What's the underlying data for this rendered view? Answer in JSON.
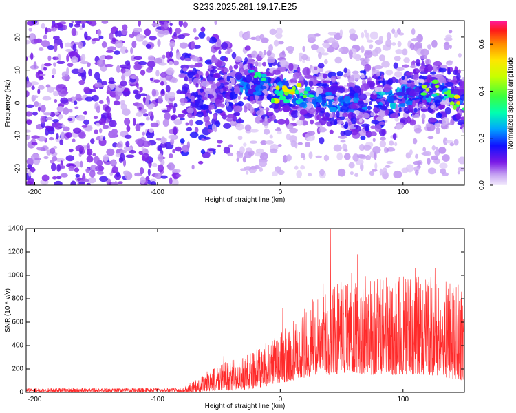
{
  "title": "S233.2025.281.19.17.E25",
  "colors": {
    "snr_line": "#ff2a2a",
    "axis": "#000000"
  },
  "chart_data": [
    {
      "type": "heatmap",
      "xlabel": "Height of straight line (km)",
      "ylabel": "Frequency (Hz)",
      "xlim": [
        -207,
        150
      ],
      "ylim": [
        -25,
        25
      ],
      "xticks": [
        -200,
        -100,
        0,
        100
      ],
      "yticks": [
        -20,
        -10,
        0,
        10,
        20
      ],
      "xtick_labels": [
        "-200",
        "-100",
        "0",
        "100"
      ],
      "ytick_labels": [
        "-20",
        "-10",
        "0",
        "10",
        "20"
      ],
      "colorbar": {
        "label": "Normalized spectral amplitude",
        "range": [
          0,
          0.7
        ],
        "ticks": [
          0.0,
          0.2,
          0.4,
          0.6
        ],
        "tick_labels": [
          "0.0",
          "0.2",
          "0.4",
          "0.6"
        ]
      },
      "ridge_center_hz": [
        {
          "x": -60,
          "f": 3
        },
        {
          "x": -30,
          "f": 5
        },
        {
          "x": 0,
          "f": 4
        },
        {
          "x": 30,
          "f": 1
        },
        {
          "x": 60,
          "f": 0
        },
        {
          "x": 90,
          "f": 1
        },
        {
          "x": 120,
          "f": 4
        },
        {
          "x": 148,
          "f": 1
        }
      ],
      "hotspots": [
        {
          "x": -20,
          "f": 8,
          "amp": 0.35
        },
        {
          "x": 0,
          "f": 3,
          "amp": 0.5
        },
        {
          "x": 5,
          "f": 4,
          "amp": 0.45
        },
        {
          "x": 10,
          "f": 3,
          "amp": 0.55
        },
        {
          "x": 20,
          "f": 2,
          "amp": 0.4
        },
        {
          "x": 120,
          "f": 4,
          "amp": 0.45
        },
        {
          "x": 135,
          "f": 3,
          "amp": 0.4
        },
        {
          "x": 145,
          "f": 0,
          "amp": 0.55
        }
      ]
    },
    {
      "type": "line",
      "xlabel": "Height of straight line (km)",
      "ylabel": "SNR (10 * v/v)",
      "xlim": [
        -207,
        150
      ],
      "ylim": [
        0,
        1400
      ],
      "xticks": [
        -200,
        -100,
        0,
        100
      ],
      "yticks": [
        0,
        200,
        400,
        600,
        800,
        1000,
        1200,
        1400
      ],
      "xtick_labels": [
        "-200",
        "-100",
        "0",
        "100"
      ],
      "ytick_labels": [
        "0",
        "200",
        "400",
        "600",
        "800",
        "1000",
        "1200",
        "1400"
      ],
      "envelope": [
        {
          "x": -207,
          "low": 0,
          "high": 40
        },
        {
          "x": -80,
          "low": 0,
          "high": 40
        },
        {
          "x": -70,
          "low": 0,
          "high": 100
        },
        {
          "x": -50,
          "low": 10,
          "high": 250
        },
        {
          "x": -30,
          "low": 20,
          "high": 300
        },
        {
          "x": -10,
          "low": 50,
          "high": 450
        },
        {
          "x": 10,
          "low": 100,
          "high": 600
        },
        {
          "x": 30,
          "low": 150,
          "high": 850
        },
        {
          "x": 60,
          "low": 150,
          "high": 1000
        },
        {
          "x": 90,
          "low": 150,
          "high": 1000
        },
        {
          "x": 120,
          "low": 150,
          "high": 1000
        },
        {
          "x": 150,
          "low": 100,
          "high": 900
        }
      ],
      "peaks": [
        {
          "x": -46,
          "y": 310
        },
        {
          "x": 2,
          "y": 720
        },
        {
          "x": 35,
          "y": 930
        },
        {
          "x": 41,
          "y": 1400
        },
        {
          "x": 58,
          "y": 1020
        },
        {
          "x": 63,
          "y": 1180
        },
        {
          "x": 110,
          "y": 1060
        },
        {
          "x": 126,
          "y": 1060
        },
        {
          "x": 140,
          "y": 850
        },
        {
          "x": 145,
          "y": 920
        }
      ]
    }
  ]
}
